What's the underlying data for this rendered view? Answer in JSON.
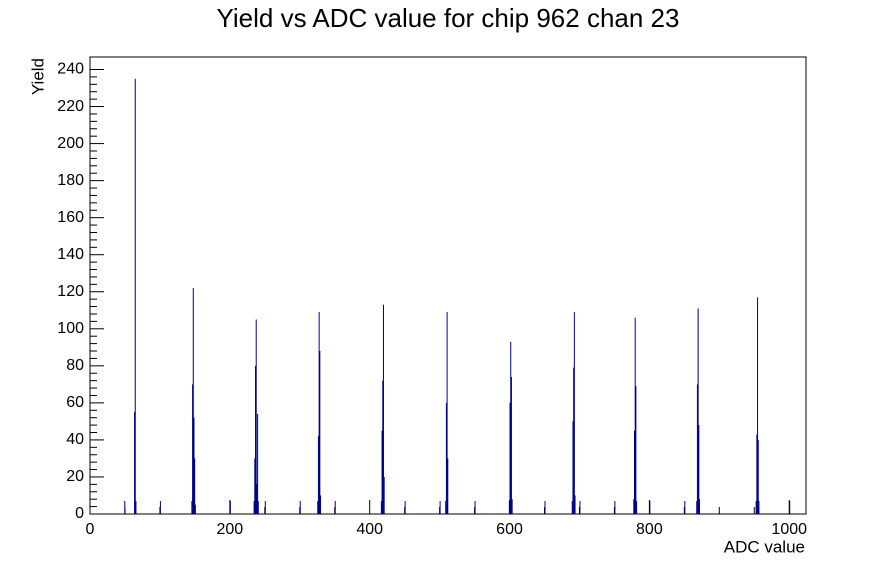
{
  "chart_data": {
    "type": "histogram",
    "title": "Yield vs ADC value for chip 962 chan 23",
    "x_label": "ADC value",
    "y_label": "Yield",
    "color": "#00008b",
    "bin_width": 1,
    "x": [
      49,
      63,
      64,
      65,
      100,
      145,
      146,
      147,
      148,
      149,
      150,
      200,
      234,
      235,
      236,
      237,
      238,
      239,
      240,
      250,
      300,
      325,
      326,
      327,
      328,
      329,
      350,
      416,
      417,
      418,
      419,
      420,
      450,
      500,
      508,
      509,
      510,
      511,
      550,
      599,
      600,
      601,
      602,
      603,
      650,
      689,
      690,
      691,
      692,
      693,
      700,
      750,
      777,
      778,
      779,
      780,
      781,
      800,
      850,
      867,
      868,
      869,
      870,
      871,
      952,
      953,
      954,
      955,
      956,
      1000
    ],
    "values": [
      7,
      55,
      235,
      7,
      7,
      7,
      70,
      122,
      52,
      30,
      5,
      7,
      7,
      30,
      80,
      105,
      16,
      54,
      7,
      7,
      7,
      7,
      42,
      109,
      88,
      10,
      7,
      7,
      45,
      72,
      113,
      20,
      7,
      7,
      7,
      60,
      109,
      30,
      7,
      7,
      60,
      93,
      74,
      8,
      7,
      7,
      50,
      79,
      109,
      10,
      7,
      7,
      8,
      45,
      106,
      69,
      7,
      7,
      7,
      7,
      70,
      111,
      48,
      8,
      7,
      43,
      117,
      40,
      7,
      7
    ],
    "xlim": [
      0,
      1024
    ],
    "ylim": [
      0,
      246.75
    ],
    "xticks": [
      0,
      200,
      400,
      600,
      800,
      1000
    ],
    "yticks": [
      0,
      20,
      40,
      60,
      80,
      100,
      120,
      140,
      160,
      180,
      200,
      220,
      240
    ]
  }
}
